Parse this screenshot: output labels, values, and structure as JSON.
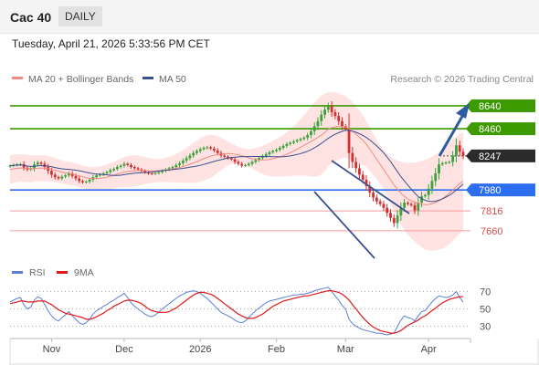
{
  "header": {
    "title": "Cac 40",
    "period": "DAILY"
  },
  "timestamp": "Tuesday, April 21, 2026 5:33:56 PM CET",
  "colors": {
    "green": "#3d9a00",
    "blue": "#2b6ef0",
    "red": "#e24848",
    "band_fill": "#ffe3e3",
    "ma20": "#f08a80",
    "ma50": "#3a4f8f",
    "up": "#3aa23a",
    "down": "#d23030",
    "arrow": "#2d5d9e",
    "rsi": "#5b7fd6",
    "rsi_ma": "#e01818"
  },
  "chart_data": [
    {
      "type": "candlestick",
      "legend": [
        {
          "name": "MA 20 + Bollinger Bands",
          "color": "#f08a80"
        },
        {
          "name": "MA 50",
          "color": "#3a4f8f"
        }
      ],
      "credit": "Research © 2026 Trading Central",
      "ylim": [
        7430,
        8790
      ],
      "x_labels": [
        {
          "label": "Nov",
          "index": 12
        },
        {
          "label": "Dec",
          "index": 33
        },
        {
          "label": "2026",
          "index": 55
        },
        {
          "label": "Feb",
          "index": 77
        },
        {
          "label": "Mar",
          "index": 97
        },
        {
          "label": "Apr",
          "index": 121
        }
      ],
      "levels": [
        {
          "label": "8640",
          "value": 8640,
          "style": "green"
        },
        {
          "label": "8460",
          "value": 8460,
          "style": "green"
        },
        {
          "label": "8247",
          "value": 8247,
          "style": "last"
        },
        {
          "label": "7980",
          "value": 7980,
          "style": "blue"
        },
        {
          "label": "7816",
          "value": 7816,
          "style": "red"
        },
        {
          "label": "7660",
          "value": 7660,
          "style": "red"
        }
      ],
      "last_price": 8247,
      "close": [
        8170,
        8175,
        8180,
        8182,
        8155,
        8140,
        8150,
        8180,
        8195,
        8185,
        8160,
        8130,
        8100,
        8080,
        8070,
        8085,
        8095,
        8110,
        8090,
        8070,
        8050,
        8040,
        8045,
        8060,
        8080,
        8095,
        8100,
        8110,
        8120,
        8135,
        8145,
        8160,
        8170,
        8185,
        8175,
        8160,
        8150,
        8140,
        8130,
        8120,
        8110,
        8108,
        8112,
        8120,
        8130,
        8140,
        8150,
        8160,
        8175,
        8190,
        8210,
        8230,
        8250,
        8270,
        8285,
        8300,
        8310,
        8315,
        8305,
        8290,
        8270,
        8250,
        8240,
        8230,
        8220,
        8200,
        8185,
        8170,
        8175,
        8185,
        8200,
        8215,
        8230,
        8245,
        8260,
        8275,
        8285,
        8295,
        8310,
        8325,
        8340,
        8350,
        8360,
        8370,
        8380,
        8390,
        8410,
        8440,
        8480,
        8520,
        8570,
        8610,
        8640,
        8590,
        8560,
        8520,
        8480,
        8460,
        8270,
        8200,
        8150,
        8100,
        8060,
        8010,
        7960,
        7920,
        7890,
        7870,
        7840,
        7800,
        7760,
        7720,
        7780,
        7840,
        7880,
        7870,
        7860,
        7820,
        7880,
        7930,
        7940,
        7990,
        8050,
        8110,
        8180,
        8190,
        8195,
        8200,
        8250,
        8330,
        8280,
        8247
      ],
      "ma20": [
        8140,
        8145,
        8150,
        8152,
        8150,
        8148,
        8146,
        8147,
        8150,
        8152,
        8150,
        8148,
        8142,
        8135,
        8128,
        8120,
        8115,
        8110,
        8105,
        8098,
        8090,
        8082,
        8076,
        8072,
        8070,
        8070,
        8072,
        8075,
        8080,
        8088,
        8096,
        8104,
        8112,
        8120,
        8125,
        8128,
        8130,
        8132,
        8132,
        8132,
        8130,
        8130,
        8130,
        8132,
        8134,
        8137,
        8140,
        8145,
        8150,
        8156,
        8164,
        8172,
        8182,
        8192,
        8203,
        8214,
        8225,
        8235,
        8244,
        8252,
        8258,
        8262,
        8264,
        8265,
        8264,
        8260,
        8255,
        8248,
        8240,
        8232,
        8225,
        8220,
        8217,
        8215,
        8216,
        8220,
        8225,
        8232,
        8240,
        8250,
        8260,
        8272,
        8285,
        8300,
        8315,
        8330,
        8345,
        8360,
        8375,
        8392,
        8410,
        8430,
        8455,
        8468,
        8475,
        8478,
        8478,
        8475,
        8460,
        8440,
        8418,
        8395,
        8370,
        8340,
        8300,
        8260,
        8220,
        8180,
        8140,
        8100,
        8060,
        8020,
        7985,
        7955,
        7930,
        7910,
        7895,
        7885,
        7875,
        7868,
        7865,
        7866,
        7872,
        7882,
        7895,
        7912,
        7932,
        7955,
        7980,
        8006,
        8030,
        8050
      ],
      "bb_upper": [
        8250,
        8255,
        8258,
        8260,
        8258,
        8255,
        8252,
        8250,
        8252,
        8255,
        8252,
        8248,
        8240,
        8230,
        8220,
        8212,
        8205,
        8200,
        8195,
        8188,
        8180,
        8172,
        8165,
        8160,
        8158,
        8160,
        8165,
        8172,
        8180,
        8190,
        8200,
        8212,
        8225,
        8238,
        8245,
        8250,
        8252,
        8250,
        8245,
        8238,
        8230,
        8225,
        8222,
        8222,
        8225,
        8232,
        8240,
        8250,
        8262,
        8276,
        8292,
        8310,
        8330,
        8350,
        8368,
        8385,
        8398,
        8408,
        8412,
        8410,
        8402,
        8390,
        8375,
        8360,
        8345,
        8330,
        8318,
        8308,
        8302,
        8300,
        8302,
        8308,
        8316,
        8326,
        8338,
        8352,
        8366,
        8380,
        8395,
        8412,
        8432,
        8455,
        8480,
        8508,
        8538,
        8568,
        8600,
        8635,
        8668,
        8695,
        8718,
        8735,
        8745,
        8748,
        8745,
        8738,
        8728,
        8715,
        8695,
        8670,
        8640,
        8605,
        8565,
        8520,
        8470,
        8420,
        8372,
        8330,
        8295,
        8265,
        8240,
        8222,
        8210,
        8200,
        8195,
        8192,
        8192,
        8195,
        8200,
        8208,
        8216,
        8226,
        8240,
        8258,
        8280,
        8305,
        8330,
        8355,
        8380,
        8400,
        8420,
        8430
      ],
      "bb_lower": [
        8030,
        8035,
        8042,
        8044,
        8042,
        8041,
        8040,
        8044,
        8048,
        8049,
        8048,
        8048,
        8044,
        8040,
        8036,
        8028,
        8025,
        8020,
        8015,
        8008,
        8000,
        7992,
        7987,
        7984,
        7982,
        7980,
        7979,
        7978,
        7980,
        7986,
        7992,
        7996,
        7999,
        8002,
        8005,
        8006,
        8008,
        8014,
        8019,
        8026,
        8030,
        8035,
        8038,
        8042,
        8043,
        8042,
        8040,
        8040,
        8038,
        8036,
        8036,
        8034,
        8034,
        8034,
        8038,
        8043,
        8052,
        8062,
        8076,
        8094,
        8114,
        8134,
        8153,
        8170,
        8183,
        8190,
        8192,
        8188,
        8178,
        8164,
        8148,
        8132,
        8118,
        8104,
        8094,
        8088,
        8084,
        8084,
        8085,
        8088,
        8088,
        8089,
        8090,
        8092,
        8092,
        8092,
        8090,
        8085,
        8082,
        8089,
        8102,
        8125,
        8165,
        8188,
        8205,
        8218,
        8228,
        8235,
        8225,
        8210,
        8196,
        8185,
        8175,
        8160,
        8130,
        8100,
        8068,
        8030,
        7985,
        7935,
        7880,
        7818,
        7760,
        7710,
        7665,
        7628,
        7598,
        7575,
        7550,
        7528,
        7514,
        7506,
        7504,
        7506,
        7510,
        7519,
        7534,
        7555,
        7580,
        7612,
        7640,
        7670
      ]
    },
    {
      "type": "line",
      "legend": [
        {
          "name": "RSI",
          "color": "#5b7fd6"
        },
        {
          "name": "9MA",
          "color": "#e01818"
        }
      ],
      "ylim": [
        20,
        80
      ],
      "y_ticks": [
        {
          "label": "70",
          "value": 70
        },
        {
          "label": "50",
          "value": 50
        },
        {
          "label": "30",
          "value": 30
        }
      ],
      "rsi": [
        58,
        60,
        62,
        63,
        55,
        50,
        52,
        60,
        64,
        62,
        55,
        48,
        42,
        38,
        36,
        40,
        43,
        47,
        42,
        38,
        34,
        32,
        34,
        38,
        44,
        48,
        50,
        53,
        55,
        58,
        60,
        63,
        65,
        68,
        63,
        57,
        53,
        50,
        47,
        44,
        42,
        41,
        43,
        46,
        50,
        53,
        56,
        59,
        62,
        65,
        67,
        69,
        70,
        71,
        70,
        68,
        65,
        62,
        58,
        54,
        50,
        46,
        44,
        42,
        40,
        37,
        35,
        34,
        36,
        40,
        44,
        48,
        51,
        54,
        57,
        59,
        60,
        61,
        62,
        63,
        64,
        65,
        66,
        66,
        67,
        67,
        68,
        69,
        71,
        72,
        73,
        74,
        75,
        70,
        65,
        60,
        54,
        50,
        38,
        33,
        30,
        28,
        26,
        25,
        24,
        23,
        22,
        22,
        21,
        20,
        21,
        22,
        30,
        37,
        42,
        40,
        39,
        36,
        42,
        47,
        48,
        53,
        58,
        62,
        65,
        64,
        63,
        64,
        66,
        70,
        63,
        58
      ],
      "rsi_9ma": [
        56,
        57,
        58,
        59,
        59,
        58,
        58,
        58,
        59,
        59,
        59,
        57,
        55,
        52,
        49,
        47,
        45,
        44,
        43,
        42,
        41,
        40,
        38,
        38,
        39,
        41,
        43,
        45,
        48,
        50,
        53,
        55,
        57,
        59,
        60,
        60,
        59,
        58,
        56,
        53,
        50,
        48,
        47,
        46,
        46,
        46,
        47,
        49,
        51,
        54,
        57,
        60,
        63,
        66,
        68,
        69,
        69,
        68,
        67,
        65,
        62,
        59,
        56,
        53,
        50,
        47,
        44,
        42,
        40,
        39,
        39,
        40,
        42,
        44,
        47,
        50,
        53,
        55,
        57,
        59,
        60,
        61,
        62,
        63,
        64,
        65,
        65,
        66,
        67,
        68,
        69,
        70,
        71,
        71,
        70,
        69,
        67,
        64,
        60,
        55,
        50,
        45,
        40,
        36,
        32,
        29,
        27,
        25,
        24,
        23,
        22,
        22,
        23,
        25,
        28,
        31,
        33,
        35,
        37,
        40,
        42,
        45,
        48,
        51,
        54,
        57,
        59,
        61,
        62,
        63,
        64,
        64
      ]
    }
  ]
}
